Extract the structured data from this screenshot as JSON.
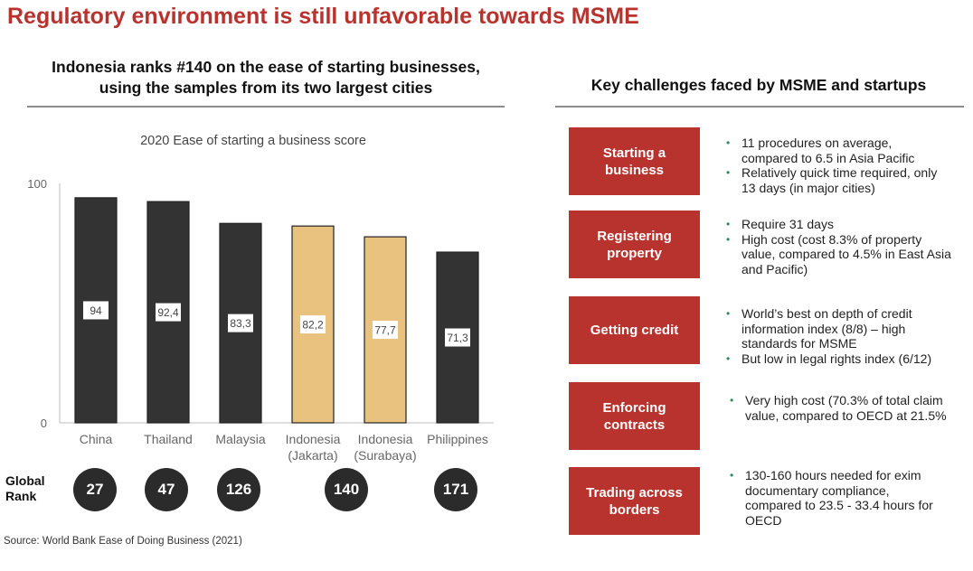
{
  "title": "Regulatory environment is still unfavorable towards MSME",
  "left": {
    "heading_line1": "Indonesia ranks #140 on the ease of starting businesses,",
    "heading_line2": "using the samples from its two largest cities"
  },
  "chart_data": {
    "type": "bar",
    "title": "2020 Ease of starting a business score",
    "categories": [
      [
        "China"
      ],
      [
        "Thailand"
      ],
      [
        "Malaysia"
      ],
      [
        "Indonesia",
        "(Jakarta)"
      ],
      [
        "Indonesia",
        "(Surabaya)"
      ],
      [
        "Philippines"
      ]
    ],
    "values": [
      94,
      92.4,
      83.3,
      82.2,
      77.7,
      71.3
    ],
    "value_labels": [
      "94",
      "92,4",
      "83,3",
      "82,2",
      "77,7",
      "71,3"
    ],
    "ylim": [
      0,
      100
    ],
    "yticks": [
      "0",
      "100"
    ],
    "colors": [
      "#333333",
      "#333333",
      "#333333",
      "#e8c27e",
      "#e8c27e",
      "#333333"
    ]
  },
  "global_rank": {
    "label_line1": "Global",
    "label_line2": "Rank",
    "ranks": [
      "27",
      "47",
      "126",
      "140",
      "171"
    ]
  },
  "source": "Source: World Bank Ease of Doing Business (2021)",
  "right": {
    "heading": "Key challenges faced by MSME and startups",
    "challenges": [
      {
        "label": "Starting a business",
        "bullets": [
          "11 procedures on average, compared to 6.5 in Asia Pacific",
          "Relatively quick time required, only 13 days (in major cities)"
        ]
      },
      {
        "label": "Registering property",
        "bullets": [
          "Require 31 days",
          "High cost (cost 8.3% of property value, compared to 4.5% in East Asia and Pacific)"
        ]
      },
      {
        "label": "Getting credit",
        "bullets": [
          "World’s best on depth of credit information index (8/8) – high standards for MSME",
          "But low in legal rights index (6/12)"
        ]
      },
      {
        "label": "Enforcing contracts",
        "bullets": [
          "Very high cost (70.3% of total claim value, compared to OECD at 21.5%"
        ]
      },
      {
        "label": "Trading across borders",
        "bullets": [
          "130-160 hours needed for exim documentary compliance, compared to 23.5 - 33.4 hours for OECD"
        ]
      }
    ]
  }
}
